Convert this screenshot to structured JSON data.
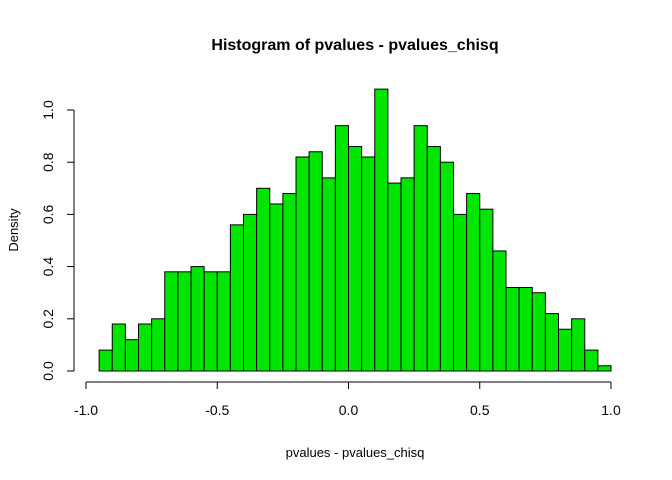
{
  "chart_data": {
    "type": "bar",
    "title": "Histogram of pvalues - pvalues_chisq",
    "xlabel": "pvalues - pvalues_chisq",
    "ylabel": "Density",
    "bin_edges": [
      -0.95,
      -0.9,
      -0.85,
      -0.8,
      -0.75,
      -0.7,
      -0.65,
      -0.6,
      -0.55,
      -0.5,
      -0.45,
      -0.4,
      -0.35,
      -0.3,
      -0.25,
      -0.2,
      -0.15,
      -0.1,
      -0.05,
      0.0,
      0.05,
      0.1,
      0.15,
      0.2,
      0.25,
      0.3,
      0.35,
      0.4,
      0.45,
      0.5,
      0.55,
      0.6,
      0.65,
      0.7,
      0.75,
      0.8,
      0.85,
      0.9,
      0.95,
      1.0
    ],
    "values": [
      0.08,
      0.18,
      0.12,
      0.18,
      0.2,
      0.38,
      0.38,
      0.4,
      0.38,
      0.38,
      0.56,
      0.6,
      0.7,
      0.64,
      0.68,
      0.82,
      0.84,
      0.74,
      0.94,
      0.86,
      0.82,
      1.08,
      0.72,
      0.74,
      0.94,
      0.86,
      0.8,
      0.6,
      0.68,
      0.62,
      0.46,
      0.32,
      0.32,
      0.3,
      0.22,
      0.16,
      0.2,
      0.08,
      0.02
    ],
    "xlim": [
      -1.0,
      1.0
    ],
    "ylim": [
      0.0,
      1.0
    ],
    "x_ticks": [
      -1.0,
      -0.5,
      0.0,
      0.5,
      1.0
    ],
    "x_tick_labels": [
      "-1.0",
      "-0.5",
      "0.0",
      "0.5",
      "1.0"
    ],
    "y_ticks": [
      0.0,
      0.2,
      0.4,
      0.6,
      0.8,
      1.0
    ],
    "y_tick_labels": [
      "0.0",
      "0.2",
      "0.4",
      "0.6",
      "0.8",
      "1.0"
    ],
    "bar_color": "#00e600",
    "bar_stroke": "#000000",
    "grid": false,
    "legend": false
  }
}
